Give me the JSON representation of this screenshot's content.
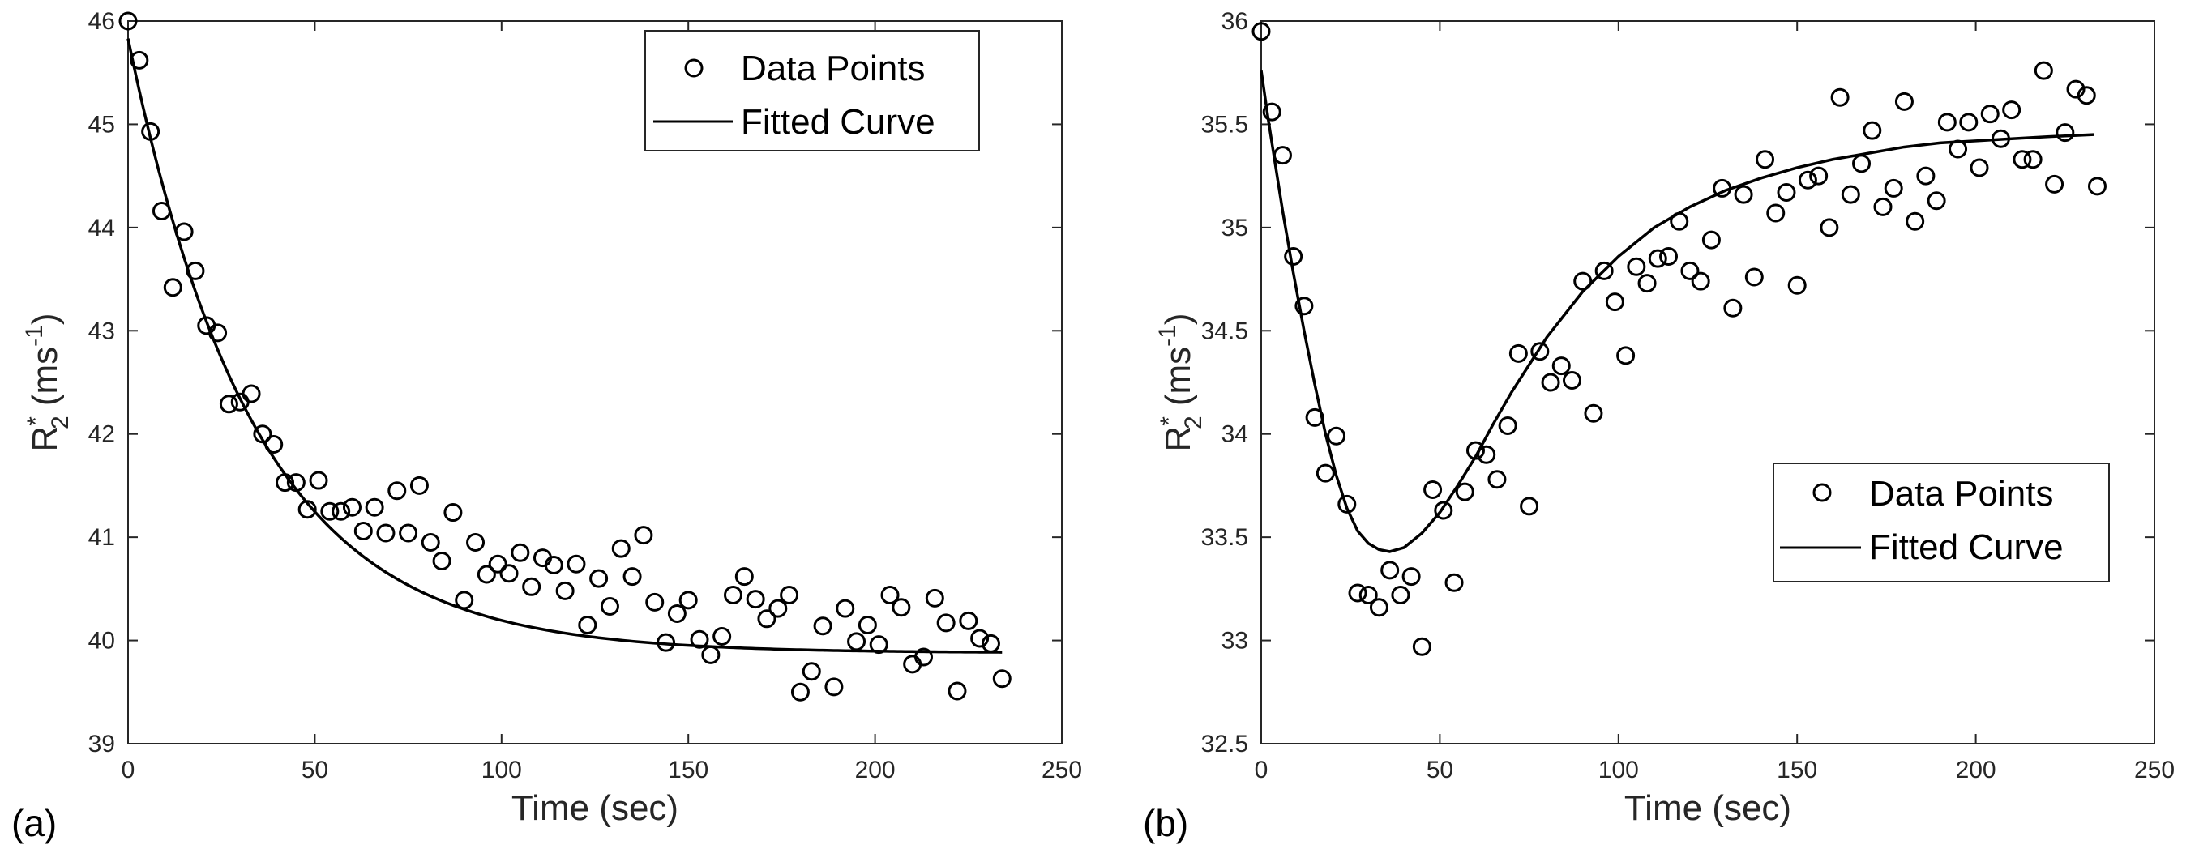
{
  "chart_data": [
    {
      "type": "scatter",
      "panel_label": "(a)",
      "xlabel": "Time (sec)",
      "ylabel": {
        "base": "R",
        "sup": "*",
        "sub": "2",
        "text": " (ms",
        "unit_sup": "-1",
        "close": ")"
      },
      "xlim": [
        0,
        250
      ],
      "ylim": [
        39,
        46
      ],
      "xticks": [
        "0",
        "50",
        "100",
        "150",
        "200",
        "250"
      ],
      "yticks": [
        "39",
        "40",
        "41",
        "42",
        "43",
        "44",
        "45",
        "46"
      ],
      "legend": {
        "position": "top-right",
        "entries": [
          "Data Points",
          "Fitted Curve"
        ]
      },
      "series": [
        {
          "name": "Data Points",
          "x": [
            0,
            3,
            6,
            9,
            12,
            15,
            18,
            21,
            24,
            27,
            30,
            33,
            36,
            39,
            42,
            45,
            48,
            51,
            54,
            57,
            60,
            63,
            66,
            69,
            72,
            75,
            78,
            81,
            84,
            87,
            90,
            93,
            96,
            99,
            102,
            105,
            108,
            111,
            114,
            117,
            120,
            123,
            126,
            129,
            132,
            135,
            138,
            141,
            144,
            147,
            150,
            153,
            156,
            159,
            162,
            165,
            168,
            171,
            174,
            177,
            180,
            183,
            186,
            189,
            192,
            195,
            198,
            201,
            204,
            207,
            210,
            213,
            216,
            219,
            222,
            225,
            228,
            231,
            234
          ],
          "y": [
            46.0,
            45.62,
            44.93,
            44.16,
            43.42,
            43.96,
            43.58,
            43.05,
            42.98,
            42.29,
            42.31,
            42.39,
            42.0,
            41.9,
            41.53,
            41.53,
            41.27,
            41.55,
            41.25,
            41.25,
            41.29,
            41.06,
            41.29,
            41.04,
            41.45,
            41.04,
            41.5,
            40.95,
            40.77,
            41.24,
            40.39,
            40.95,
            40.64,
            40.74,
            40.65,
            40.85,
            40.52,
            40.8,
            40.73,
            40.48,
            40.74,
            40.15,
            40.6,
            40.33,
            40.89,
            40.62,
            41.02,
            40.37,
            39.98,
            40.26,
            40.39,
            40.01,
            39.86,
            40.04,
            40.44,
            40.62,
            40.4,
            40.21,
            40.31,
            40.44,
            39.5,
            39.7,
            40.14,
            39.55,
            40.31,
            39.99,
            40.15,
            39.96,
            40.44,
            40.32,
            39.77,
            39.84,
            40.41,
            40.17,
            39.51,
            40.19,
            40.02,
            39.97,
            39.63
          ]
        },
        {
          "name": "Fitted Curve",
          "model": "exp_decay",
          "params": {
            "a": 39.88,
            "b": 5.95,
            "tau": 34.0
          },
          "x_range": [
            0,
            234
          ]
        }
      ]
    },
    {
      "type": "scatter",
      "panel_label": "(b)",
      "xlabel": "Time (sec)",
      "ylabel": {
        "base": "R",
        "sup": "*",
        "sub": "2",
        "text": " (ms",
        "unit_sup": "-1",
        "close": ")"
      },
      "xlim": [
        0,
        250
      ],
      "ylim": [
        32.5,
        36
      ],
      "xticks": [
        "0",
        "50",
        "100",
        "150",
        "200",
        "250"
      ],
      "yticks": [
        "32.5",
        "33",
        "33.5",
        "34",
        "34.5",
        "35",
        "35.5",
        "36"
      ],
      "legend": {
        "position": "bottom-right",
        "entries": [
          "Data Points",
          "Fitted Curve"
        ]
      },
      "series": [
        {
          "name": "Data Points",
          "x": [
            0,
            3,
            6,
            9,
            12,
            15,
            18,
            21,
            24,
            27,
            30,
            33,
            36,
            39,
            42,
            45,
            48,
            51,
            54,
            57,
            60,
            63,
            66,
            69,
            72,
            75,
            78,
            81,
            84,
            87,
            90,
            93,
            96,
            99,
            102,
            105,
            108,
            111,
            114,
            117,
            120,
            123,
            126,
            129,
            132,
            135,
            138,
            141,
            144,
            147,
            150,
            153,
            156,
            159,
            162,
            165,
            168,
            171,
            174,
            177,
            180,
            183,
            186,
            189,
            192,
            195,
            198,
            201,
            204,
            207,
            210,
            213,
            216,
            219,
            222,
            225,
            228,
            231,
            234
          ],
          "y": [
            35.95,
            35.56,
            35.35,
            34.86,
            34.62,
            34.08,
            33.81,
            33.99,
            33.66,
            33.23,
            33.22,
            33.16,
            33.34,
            33.22,
            33.31,
            32.97,
            33.73,
            33.63,
            33.28,
            33.72,
            33.92,
            33.9,
            33.78,
            34.04,
            34.39,
            33.65,
            34.4,
            34.25,
            34.33,
            34.26,
            34.74,
            34.1,
            34.79,
            34.64,
            34.38,
            34.81,
            34.73,
            34.85,
            34.86,
            35.03,
            34.79,
            34.74,
            34.94,
            35.19,
            34.61,
            35.16,
            34.76,
            35.33,
            35.07,
            35.17,
            34.72,
            35.23,
            35.25,
            35.0,
            35.63,
            35.16,
            35.31,
            35.47,
            35.1,
            35.19,
            35.61,
            35.03,
            35.25,
            35.13,
            35.51,
            35.38,
            35.51,
            35.29,
            35.55,
            35.43,
            35.57,
            35.33,
            35.33,
            35.76,
            35.21,
            35.46,
            35.67,
            35.64,
            35.2
          ]
        },
        {
          "name": "Fitted Curve",
          "model": "points",
          "x": [
            0,
            2,
            4,
            6,
            9,
            12,
            15,
            18,
            21,
            24,
            27,
            30,
            33,
            36,
            40,
            45,
            50,
            55,
            60,
            65,
            70,
            80,
            90,
            100,
            110,
            120,
            130,
            140,
            150,
            160,
            170,
            180,
            190,
            200,
            210,
            220,
            233
          ],
          "y": [
            35.76,
            35.52,
            35.3,
            35.08,
            34.78,
            34.5,
            34.24,
            34.0,
            33.8,
            33.64,
            33.53,
            33.47,
            33.44,
            33.43,
            33.45,
            33.52,
            33.62,
            33.75,
            33.89,
            34.05,
            34.2,
            34.47,
            34.69,
            34.86,
            35.0,
            35.1,
            35.18,
            35.24,
            35.29,
            35.33,
            35.36,
            35.39,
            35.41,
            35.42,
            35.43,
            35.44,
            35.45
          ]
        }
      ]
    }
  ]
}
